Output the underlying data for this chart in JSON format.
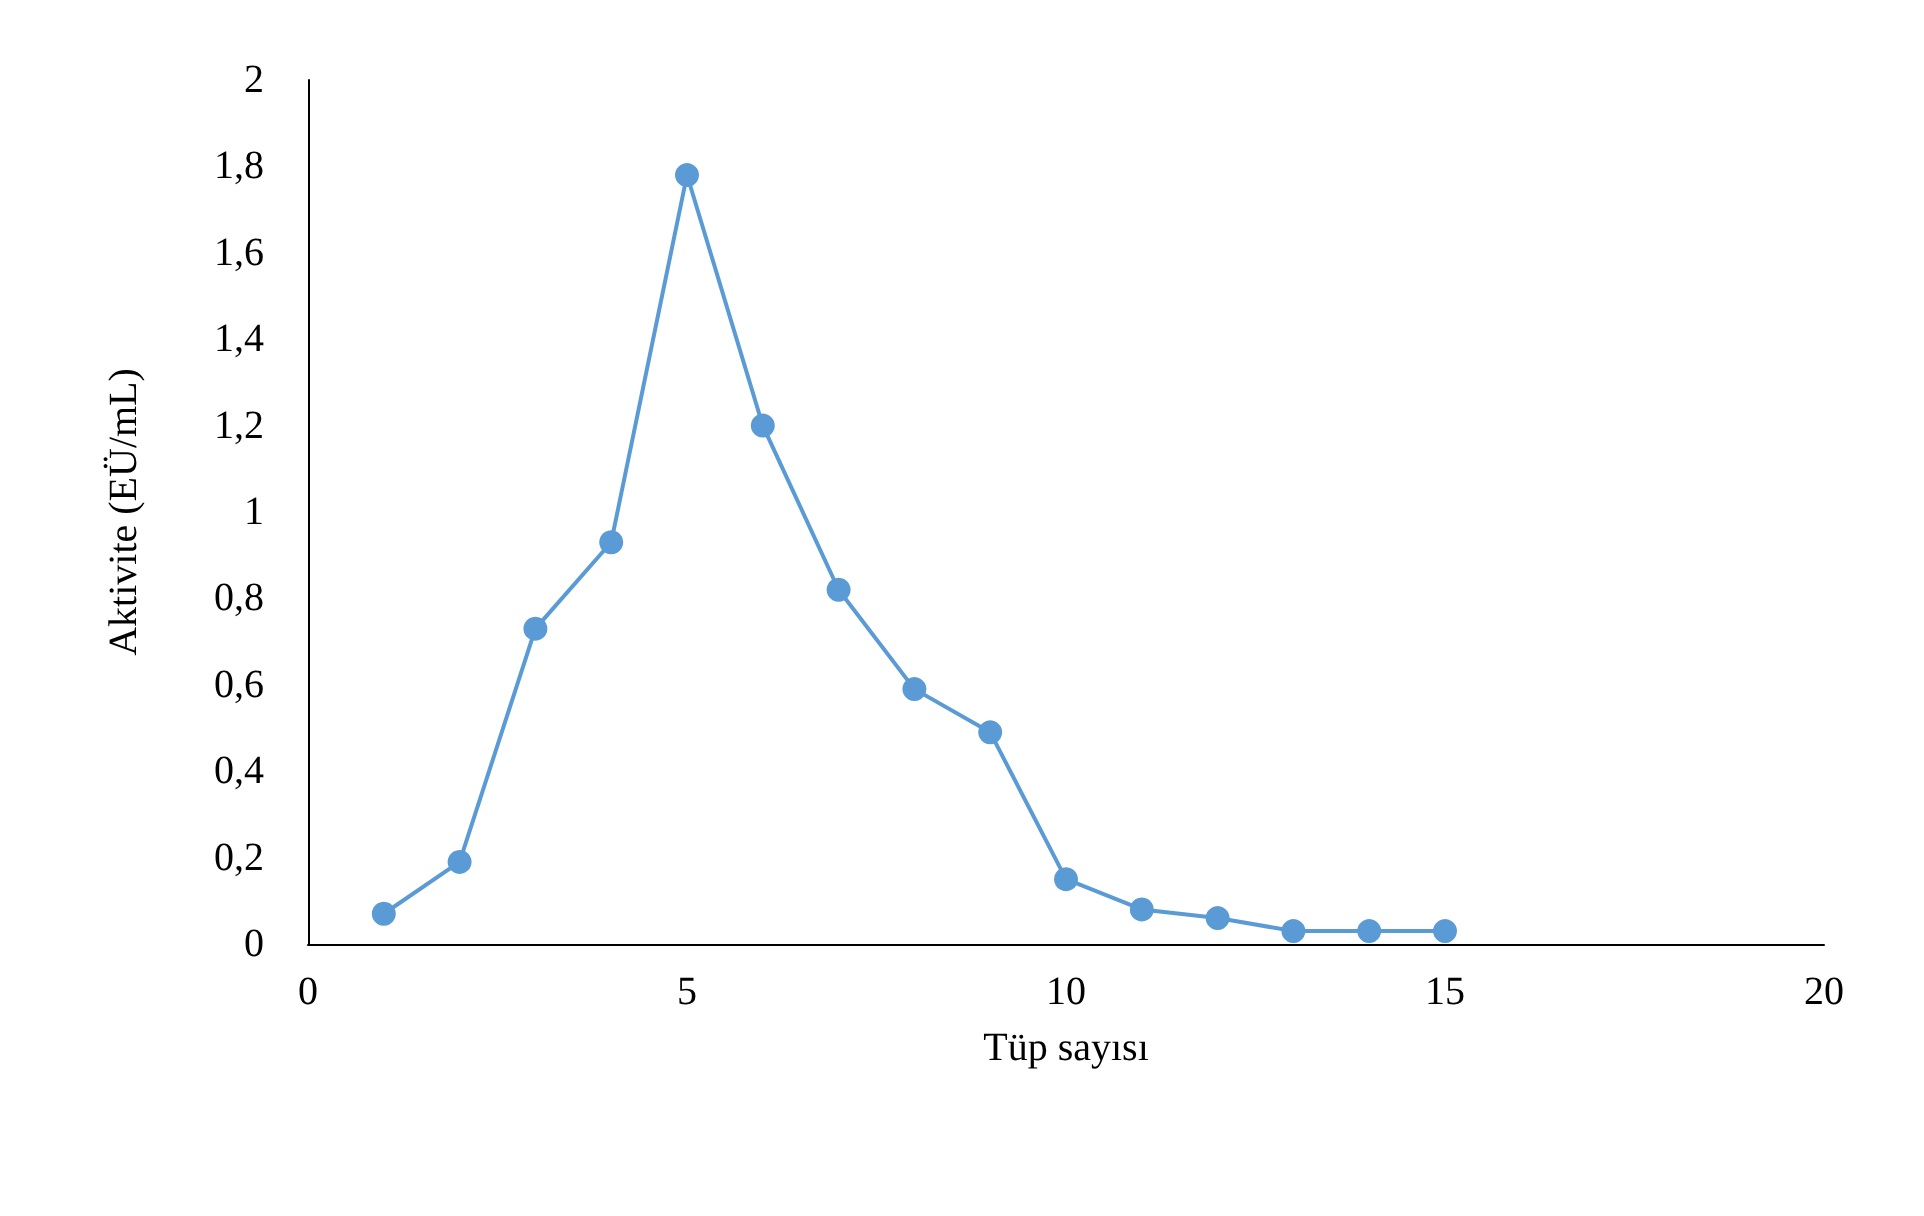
{
  "chart_data": {
    "type": "line",
    "xlabel": "Tüp sayısı",
    "ylabel": "Aktivite (EÜ/mL)",
    "x": [
      1,
      2,
      3,
      4,
      5,
      6,
      7,
      8,
      9,
      10,
      11,
      12,
      13,
      14,
      15
    ],
    "series": [
      {
        "color": "#5b9bd5",
        "values": [
          0.07,
          0.19,
          0.73,
          0.93,
          1.78,
          1.2,
          0.82,
          0.59,
          0.49,
          0.15,
          0.08,
          0.06,
          0.03,
          0.03,
          0.03
        ]
      }
    ],
    "xlim": [
      0,
      20
    ],
    "xticks": [
      0,
      5,
      10,
      15,
      20
    ],
    "ylim": [
      0,
      2
    ],
    "yticks": [
      0,
      {
        "value": 0.2,
        "label": "0,2"
      },
      {
        "value": 0.4,
        "label": "0,4"
      },
      {
        "value": 0.6,
        "label": "0,6"
      },
      {
        "value": 0.8,
        "label": "0,8"
      },
      1,
      {
        "value": 1.2,
        "label": "1,2"
      },
      {
        "value": 1.4,
        "label": "1,4"
      },
      {
        "value": 1.6,
        "label": "1,6"
      },
      {
        "value": 1.8,
        "label": "1,8"
      },
      2
    ],
    "grid": false,
    "marker": "circle",
    "line_style": "solid"
  }
}
